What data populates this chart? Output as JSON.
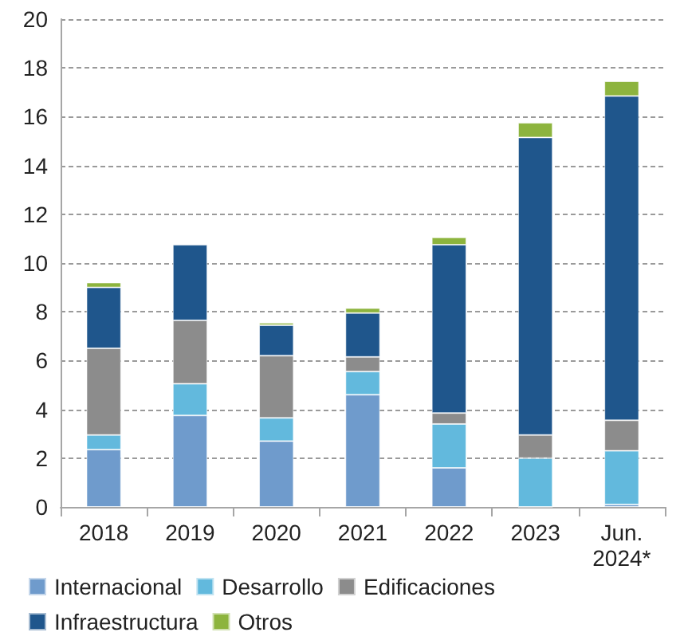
{
  "chart_data": {
    "type": "bar",
    "stacked": true,
    "categories": [
      "2018",
      "2019",
      "2020",
      "2021",
      "2022",
      "2023",
      "Jun.\n2024*"
    ],
    "series": [
      {
        "name": "Internacional",
        "color": "#6f9bcc",
        "values": [
          2.35,
          3.75,
          2.7,
          4.6,
          1.6,
          0,
          0.1
        ]
      },
      {
        "name": "Desarrollo",
        "color": "#62b9dd",
        "values": [
          0.6,
          1.3,
          0.95,
          0.95,
          1.8,
          2.0,
          2.2
        ]
      },
      {
        "name": "Edificaciones",
        "color": "#8c8c8c",
        "values": [
          3.55,
          2.6,
          2.55,
          0.6,
          0.45,
          0.95,
          1.25
        ]
      },
      {
        "name": "Infraestructura",
        "color": "#1f568c",
        "values": [
          2.5,
          3.1,
          1.25,
          1.8,
          6.9,
          12.2,
          13.3
        ]
      },
      {
        "name": "Otros",
        "color": "#8db43e",
        "values": [
          0.2,
          null,
          0.1,
          0.2,
          0.3,
          0.6,
          0.6
        ]
      }
    ],
    "ylim": [
      0,
      20
    ],
    "yticks": [
      0,
      2,
      4,
      6,
      8,
      10,
      12,
      14,
      16,
      18,
      20
    ],
    "grid": "y",
    "legend": "bottom"
  }
}
